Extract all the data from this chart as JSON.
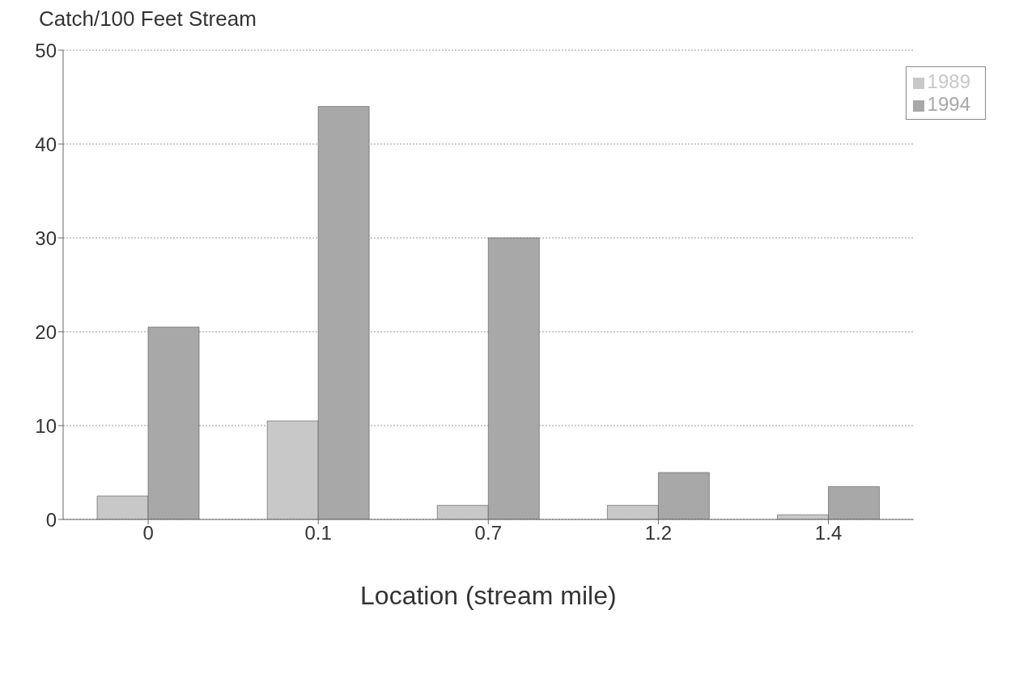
{
  "chart_data": {
    "type": "bar",
    "title": "Catch/100 Feet Stream",
    "xlabel": "Location (stream mile)",
    "categories": [
      "0",
      "0.1",
      "0.7",
      "1.2",
      "1.4"
    ],
    "series": [
      {
        "name": "1989",
        "color": "#c8c8c8",
        "values": [
          2.5,
          10.5,
          1.5,
          1.5,
          0.5
        ]
      },
      {
        "name": "1994",
        "color": "#a8a8a8",
        "values": [
          20.5,
          44,
          30,
          5,
          3.5
        ]
      }
    ],
    "ylim": [
      0,
      50
    ],
    "yticks": [
      0,
      10,
      20,
      30,
      40,
      50
    ],
    "grid": "y",
    "legend": "top right"
  }
}
